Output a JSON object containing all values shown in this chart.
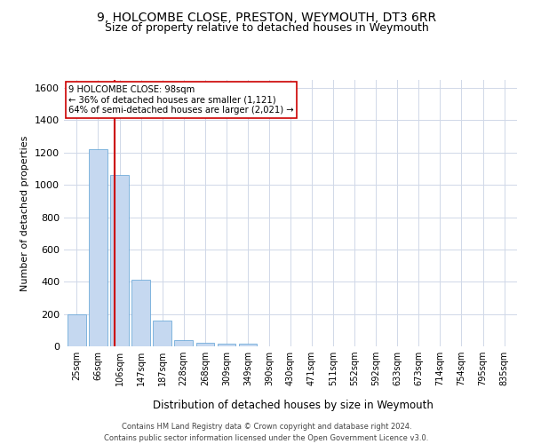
{
  "title": "9, HOLCOMBE CLOSE, PRESTON, WEYMOUTH, DT3 6RR",
  "subtitle": "Size of property relative to detached houses in Weymouth",
  "xlabel": "Distribution of detached houses by size in Weymouth",
  "ylabel": "Number of detached properties",
  "categories": [
    "25sqm",
    "66sqm",
    "106sqm",
    "147sqm",
    "187sqm",
    "228sqm",
    "268sqm",
    "309sqm",
    "349sqm",
    "390sqm",
    "430sqm",
    "471sqm",
    "511sqm",
    "552sqm",
    "592sqm",
    "633sqm",
    "673sqm",
    "714sqm",
    "754sqm",
    "795sqm",
    "835sqm"
  ],
  "values": [
    200,
    1220,
    1060,
    410,
    160,
    40,
    20,
    15,
    15,
    0,
    0,
    0,
    0,
    0,
    0,
    0,
    0,
    0,
    0,
    0,
    0
  ],
  "bar_color": "#c5d8f0",
  "bar_edge_color": "#5a9fd4",
  "annotation_line1": "9 HOLCOMBE CLOSE: 98sqm",
  "annotation_line2": "← 36% of detached houses are smaller (1,121)",
  "annotation_line3": "64% of semi-detached houses are larger (2,021) →",
  "vline_color": "#cc0000",
  "annotation_box_color": "#cc0000",
  "ylim": [
    0,
    1650
  ],
  "yticks": [
    0,
    200,
    400,
    600,
    800,
    1000,
    1200,
    1400,
    1600
  ],
  "footer_line1": "Contains HM Land Registry data © Crown copyright and database right 2024.",
  "footer_line2": "Contains public sector information licensed under the Open Government Licence v3.0.",
  "bg_color": "#ffffff",
  "grid_color": "#d0d8e8",
  "title_fontsize": 10,
  "subtitle_fontsize": 9,
  "bar_width": 0.85,
  "vline_x": 1.78
}
